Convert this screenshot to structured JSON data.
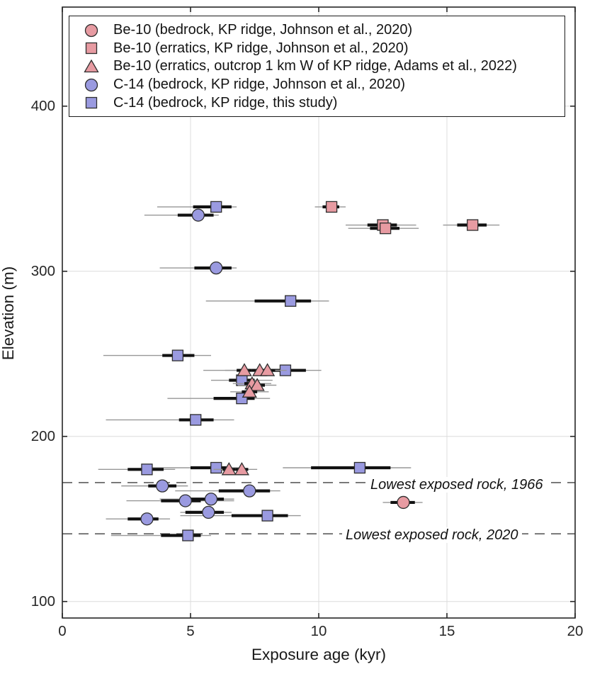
{
  "figure": {
    "background": "#ffffff"
  },
  "chart_data": {
    "type": "scatter",
    "title": "",
    "xlabel": "Exposure age (kyr)",
    "ylabel": "Elevation (m)",
    "xlim": [
      0,
      20
    ],
    "ylim": [
      90,
      460
    ],
    "x_ticks": [
      0,
      5,
      10,
      15,
      20
    ],
    "y_ticks": [
      100,
      200,
      300,
      400
    ],
    "grid": true,
    "legend_position": "top-left",
    "point_fields": [
      "age_kyr",
      "elevation_m",
      "err_inner_minus",
      "err_inner_plus",
      "err_outer_minus",
      "err_outer_plus"
    ],
    "draw_order": [
      4,
      3,
      2,
      1,
      0
    ],
    "style": {
      "pink_fill": "#e79ba2",
      "blue_fill": "#9a9ae0",
      "marker_edge": "#2e2e2e",
      "error_inner_color": "#111111",
      "error_outer_color": "#979797",
      "grid_color": "#dcdcdc",
      "axis_color": "#262626",
      "reference_line_color": "#3f3f3f"
    },
    "series": [
      {
        "name": "Be-10 (bedrock, KP ridge, Johnson et al., 2020)",
        "marker": "circle",
        "fill": "#e79ba2",
        "points": [
          [
            13.3,
            160,
            0.5,
            0.45,
            0.8,
            0.75
          ]
        ]
      },
      {
        "name": "Be-10 (erratics, KP ridge, Johnson et al., 2020)",
        "marker": "square",
        "fill": "#e79ba2",
        "points": [
          [
            10.5,
            339,
            0.35,
            0.3,
            0.65,
            0.55
          ],
          [
            12.5,
            328,
            0.6,
            0.55,
            1.45,
            1.3
          ],
          [
            12.6,
            326,
            0.6,
            0.55,
            1.45,
            1.3
          ],
          [
            16.0,
            328,
            0.6,
            0.55,
            1.15,
            1.05
          ]
        ]
      },
      {
        "name": "Be-10 (erratics, outcrop 1 km W of KP ridge, Adams et al., 2022)",
        "marker": "triangle",
        "fill": "#e79ba2",
        "points": [
          [
            7.1,
            240,
            0.3,
            0.3,
            0.75,
            0.75
          ],
          [
            7.7,
            240,
            0.3,
            0.3,
            0.75,
            0.75
          ],
          [
            8.0,
            240,
            0.3,
            0.3,
            0.75,
            0.75
          ],
          [
            7.4,
            232,
            0.3,
            0.3,
            0.75,
            0.75
          ],
          [
            7.6,
            231,
            0.3,
            0.3,
            0.75,
            0.75
          ],
          [
            7.3,
            227,
            0.3,
            0.3,
            0.75,
            0.75
          ],
          [
            6.5,
            180,
            0.25,
            0.25,
            0.6,
            0.6
          ],
          [
            7.0,
            180,
            0.25,
            0.25,
            0.6,
            0.6
          ]
        ]
      },
      {
        "name": "C-14 (bedrock, KP ridge, Johnson et al., 2020)",
        "marker": "circle",
        "fill": "#9a9ae0",
        "points": [
          [
            5.3,
            334,
            0.8,
            0.6,
            2.1,
            0.8
          ],
          [
            6.0,
            302,
            0.85,
            0.6,
            2.2,
            0.8
          ],
          [
            3.9,
            170,
            0.55,
            0.55,
            1.6,
            1.0
          ],
          [
            7.3,
            167,
            1.2,
            0.8,
            2.9,
            1.2
          ],
          [
            4.8,
            161,
            0.95,
            0.6,
            2.3,
            1.9
          ],
          [
            5.8,
            162,
            0.8,
            0.5,
            2.0,
            0.9
          ],
          [
            5.7,
            154,
            0.9,
            0.6,
            1.1,
            0.9
          ],
          [
            3.3,
            150,
            0.75,
            0.45,
            1.6,
            0.9
          ]
        ]
      },
      {
        "name": "C-14 (bedrock, KP ridge, this study)",
        "marker": "square",
        "fill": "#9a9ae0",
        "points": [
          [
            6.0,
            339,
            0.9,
            0.6,
            2.3,
            0.8
          ],
          [
            8.9,
            282,
            1.4,
            0.8,
            3.3,
            1.5
          ],
          [
            4.5,
            249,
            0.6,
            0.65,
            2.9,
            1.3
          ],
          [
            8.7,
            240,
            0.9,
            0.8,
            3.2,
            1.4
          ],
          [
            7.0,
            234,
            0.5,
            0.5,
            1.2,
            1.2
          ],
          [
            7.0,
            223,
            1.1,
            0.5,
            2.9,
            1.1
          ],
          [
            5.2,
            210,
            0.65,
            0.7,
            3.5,
            1.5
          ],
          [
            3.3,
            180,
            0.75,
            0.65,
            1.9,
            1.1
          ],
          [
            6.0,
            181,
            1.0,
            0.4,
            2.7,
            0.9
          ],
          [
            11.6,
            181,
            1.9,
            1.2,
            3.0,
            2.0
          ],
          [
            8.0,
            152,
            1.4,
            0.8,
            3.4,
            1.3
          ],
          [
            4.9,
            140,
            1.05,
            0.5,
            3.0,
            0.9
          ]
        ]
      }
    ],
    "reference_lines": [
      {
        "label": "Lowest exposed rock, 1966",
        "elevation_m": 172
      },
      {
        "label": "Lowest exposed rock, 2020",
        "elevation_m": 141
      }
    ]
  }
}
